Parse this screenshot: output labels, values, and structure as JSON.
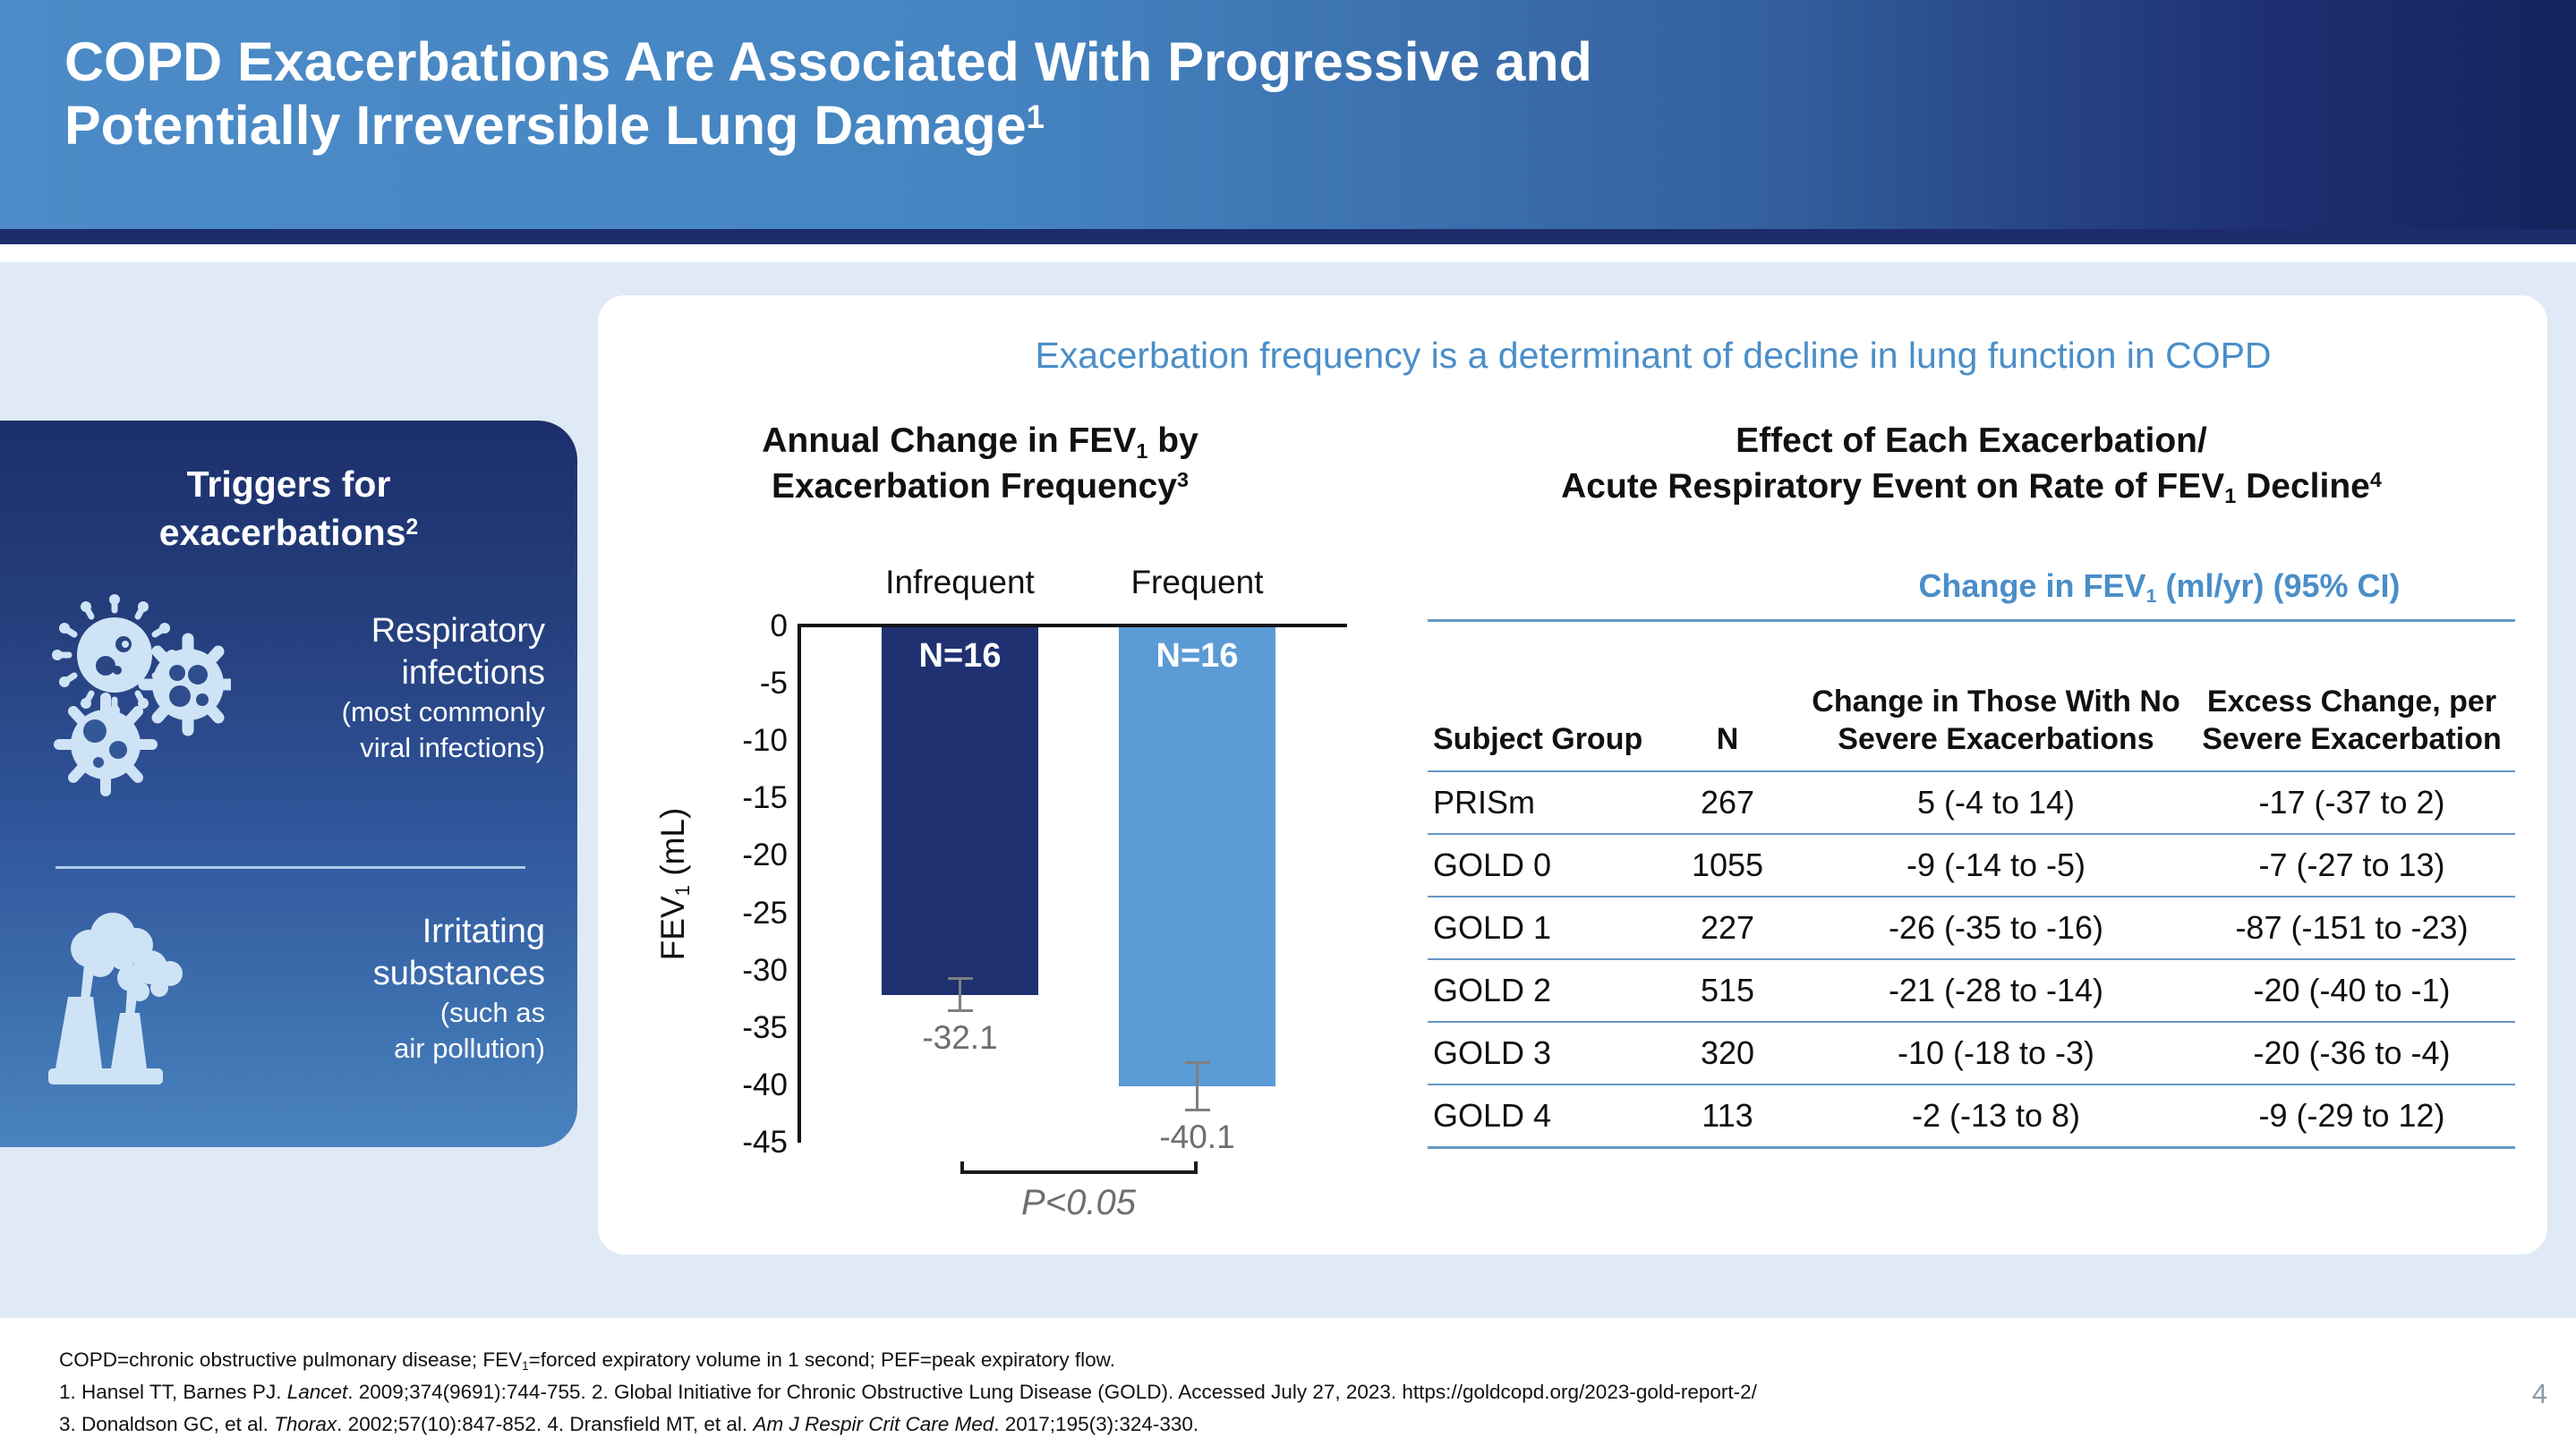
{
  "header": {
    "title_lines": [
      "COPD Exacerbations Are Associated With Progressive and",
      "Potentially Irreversible Lung Damage[sup]1[/sup]"
    ]
  },
  "left_panel": {
    "heading_lines": [
      "Triggers for",
      "exacerbations[sup]2[/sup]"
    ],
    "items": [
      {
        "icon": "virus-cluster-icon",
        "lines": [
          "Respiratory",
          "infections"
        ],
        "sublines": [
          "(most commonly",
          "viral infections)"
        ]
      },
      {
        "icon": "factory-smoke-icon",
        "lines": [
          "Irritating",
          "substances"
        ],
        "sublines": [
          "(such as",
          "air pollution)"
        ]
      }
    ]
  },
  "card": {
    "headline": "Exacerbation frequency is a determinant of decline in lung function in COPD"
  },
  "chart_data": [
    {
      "type": "bar",
      "title_lines": [
        "Annual Change in FEV[sub]1[/sub] by",
        "Exacerbation Frequency[sup]3[/sup]"
      ],
      "categories": [
        "Infrequent",
        "Frequent"
      ],
      "values": [
        -32.1,
        -40.1
      ],
      "value_labels": [
        "-32.1",
        "-40.1"
      ],
      "bar_annotations": [
        "N=16",
        "N=16"
      ],
      "errors": [
        1.5,
        2.2
      ],
      "bar_colors": [
        "#1f3171",
        "#5b9bd5"
      ],
      "ylabel": "FEV[sub]1[/sub] (mL)",
      "ylim": [
        0,
        -45
      ],
      "ytick_step": 5,
      "p_label": "P<0.05",
      "legend": "none",
      "grid": "off"
    },
    {
      "type": "table",
      "title_lines": [
        "Effect of Each Exacerbation/",
        "Acute Respiratory Event on Rate of FEV[sub]1[/sub] Decline[sup]4[/sup]"
      ],
      "subheader": "Change in FEV[sub]1[/sub] (ml/yr) (95% CI)",
      "columns": [
        "Subject Group",
        "N",
        "Change in Those With No Severe Exacerbations",
        "Excess Change, per Severe Exacerbation"
      ],
      "rows": [
        [
          "PRISm",
          "267",
          "5 (-4 to 14)",
          "-17 (-37 to 2)"
        ],
        [
          "GOLD 0",
          "1055",
          "-9 (-14 to -5)",
          "-7 (-27 to 13)"
        ],
        [
          "GOLD 1",
          "227",
          "-26 (-35 to -16)",
          "-87 (-151 to -23)"
        ],
        [
          "GOLD 2",
          "515",
          "-21 (-28 to -14)",
          "-20 (-40 to -1)"
        ],
        [
          "GOLD 3",
          "320",
          "-10 (-18 to -3)",
          "-20 (-36 to -4)"
        ],
        [
          "GOLD 4",
          "113",
          "-2 (-13 to 8)",
          "-9 (-29 to 12)"
        ]
      ]
    }
  ],
  "footnotes": {
    "lines": [
      "COPD=chronic obstructive pulmonary disease; FEV[sub]1[/sub]=forced expiratory volume in 1 second; PEF=peak expiratory flow.",
      "1. Hansel TT, Barnes PJ. [i]Lancet[/i]. 2009;374(9691):744-755. 2. Global Initiative for Chronic Obstructive Lung Disease (GOLD). Accessed July 27, 2023. https://goldcopd.org/2023-gold-report-2/",
      "3. Donaldson GC, et al. [i]Thorax[/i]. 2002;57(10):847-852. 4. Dransfield MT, et al. [i]Am J Respir Crit Care Med[/i]. 2017;195(3):324-330."
    ]
  },
  "page_number": "4",
  "colors": {
    "accent_blue": "#4a8ec9",
    "header_gradient_left": "#4c8bc7",
    "header_gradient_right": "#15235c",
    "header_accent_bar": "#1d2b6d",
    "content_background": "#dfeaf6",
    "panel_gradient_top": "#1c2f6c",
    "panel_gradient_bottom": "#4a82c0",
    "bar_dark": "#1f3171",
    "bar_light": "#5b9bd5",
    "table_rule": "#6796c6",
    "gray_text": "#6e6e6e",
    "icon_light_blue": "#cfe3f6"
  }
}
